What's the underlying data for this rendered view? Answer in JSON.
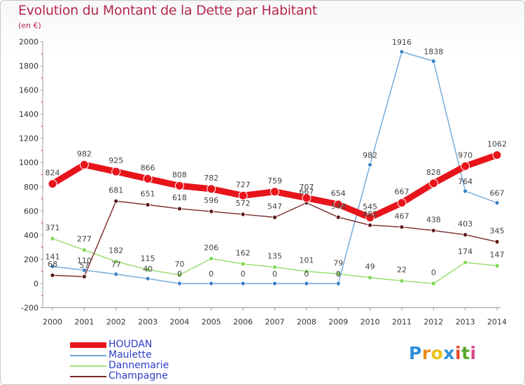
{
  "header": {
    "title": "Evolution du Montant de la Dette par Habitant",
    "subtitle": "(en €)"
  },
  "logo": {
    "text": "Proxiti",
    "letters": [
      "P",
      "r",
      "o",
      "x",
      "i",
      "t",
      "i"
    ],
    "colors": [
      "#2f8fd8",
      "#f08a1c",
      "#e8c21a",
      "#2f8fd8",
      "#e84b2c",
      "#5aa82a",
      "#d84a8a"
    ]
  },
  "chart_data": {
    "type": "line",
    "title": "Evolution du Montant de la Dette par Habitant",
    "ylabel": "(en €)",
    "xlabel": "",
    "x": [
      "2000",
      "2001",
      "2002",
      "2003",
      "2004",
      "2005",
      "2006",
      "2007",
      "2008",
      "2009",
      "2010",
      "2011",
      "2012",
      "2013",
      "2014"
    ],
    "ylim": [
      -200,
      2000
    ],
    "yticks": [
      -200,
      0,
      200,
      400,
      600,
      800,
      1000,
      1200,
      1400,
      1600,
      1800,
      2000
    ],
    "grid": false,
    "legend_position": "bottom-left",
    "series": [
      {
        "name": "HOUDAN",
        "color": "#e8141b",
        "values": [
          824,
          982,
          925,
          866,
          808,
          782,
          727,
          759,
          707,
          654,
          545,
          667,
          828,
          970,
          1062
        ]
      },
      {
        "name": "Maulette",
        "color": "#6fa6d6",
        "values": [
          141,
          110,
          77,
          40,
          0,
          0,
          0,
          0,
          0,
          0,
          982,
          1916,
          1838,
          764,
          667
        ]
      },
      {
        "name": "Dannemarie",
        "color": "#9ee07a",
        "values": [
          371,
          277,
          182,
          115,
          70,
          206,
          162,
          135,
          101,
          79,
          49,
          22,
          0,
          174,
          147
        ]
      },
      {
        "name": "Champagne",
        "color": "#7a2a2a",
        "values": [
          68,
          57,
          681,
          651,
          618,
          596,
          572,
          547,
          667,
          548,
          482,
          467,
          438,
          403,
          345
        ]
      }
    ]
  }
}
